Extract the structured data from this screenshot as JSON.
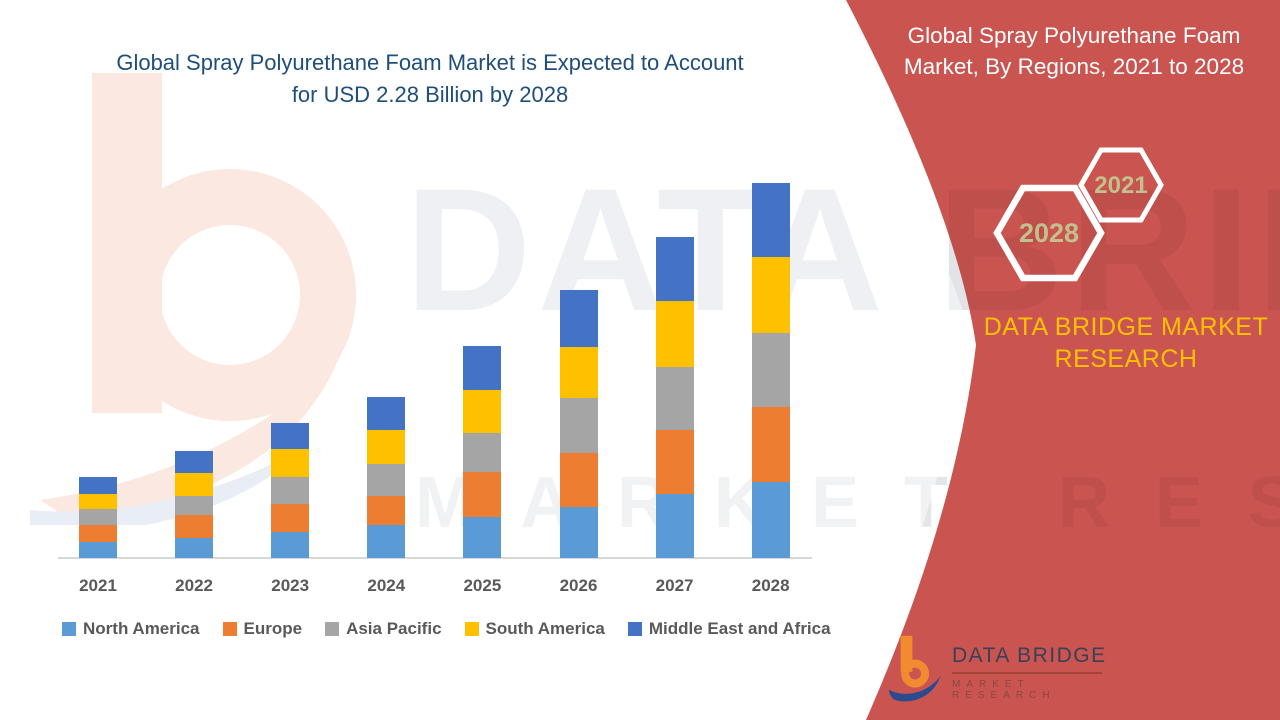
{
  "main_title": {
    "line1": "Global Spray Polyurethane Foam Market is Expected to Account",
    "line2": "for USD 2.28 Billion by 2028"
  },
  "right_panel": {
    "title_line1": "Global Spray Polyurethane Foam",
    "title_line2": "Market, By Regions, 2021 to 2028",
    "hexagons": [
      {
        "label": "2021"
      },
      {
        "label": "2028"
      }
    ],
    "brand_caption": "DATA BRIDGE MARKET RESEARCH",
    "panel_color": "#C95450",
    "hex_label_color": "#C2C08F",
    "caption_color": "#FFC103"
  },
  "footer_logo": {
    "name": "DATA BRIDGE",
    "subtext": "MARKET RESEARCH"
  },
  "watermark": {
    "line1": "DATA BRIDGE",
    "line2": "MARKET RESEARCH"
  },
  "chart_data": {
    "type": "bar",
    "variant": "stacked-column",
    "title": "Global Spray Polyurethane Foam Market is Expected to Account for USD 2.28 Billion by 2028",
    "unit": "USD Billion",
    "categories": [
      "2021",
      "2022",
      "2023",
      "2024",
      "2025",
      "2026",
      "2027",
      "2028"
    ],
    "series": [
      {
        "name": "North America",
        "color": "#5B9BD5",
        "values": [
          0.1,
          0.12,
          0.16,
          0.2,
          0.25,
          0.31,
          0.39,
          0.46
        ]
      },
      {
        "name": "Europe",
        "color": "#ED7D31",
        "values": [
          0.1,
          0.14,
          0.17,
          0.18,
          0.27,
          0.33,
          0.39,
          0.46
        ]
      },
      {
        "name": "Asia Pacific",
        "color": "#A5A5A5",
        "values": [
          0.1,
          0.12,
          0.16,
          0.19,
          0.24,
          0.33,
          0.38,
          0.45
        ]
      },
      {
        "name": "South America",
        "color": "#FFC000",
        "values": [
          0.09,
          0.14,
          0.17,
          0.21,
          0.26,
          0.31,
          0.4,
          0.46
        ]
      },
      {
        "name": "Middle East and Africa",
        "color": "#4472C4",
        "values": [
          0.1,
          0.13,
          0.16,
          0.2,
          0.27,
          0.35,
          0.39,
          0.45
        ]
      }
    ],
    "totals": [
      0.49,
      0.65,
      0.82,
      0.98,
      1.29,
      1.63,
      1.95,
      2.28
    ],
    "ylim": [
      0,
      2.4
    ],
    "gridlines": false,
    "legend_position": "bottom",
    "axis_label_color": "#595959",
    "baseline_color": "#D8D8D8"
  }
}
